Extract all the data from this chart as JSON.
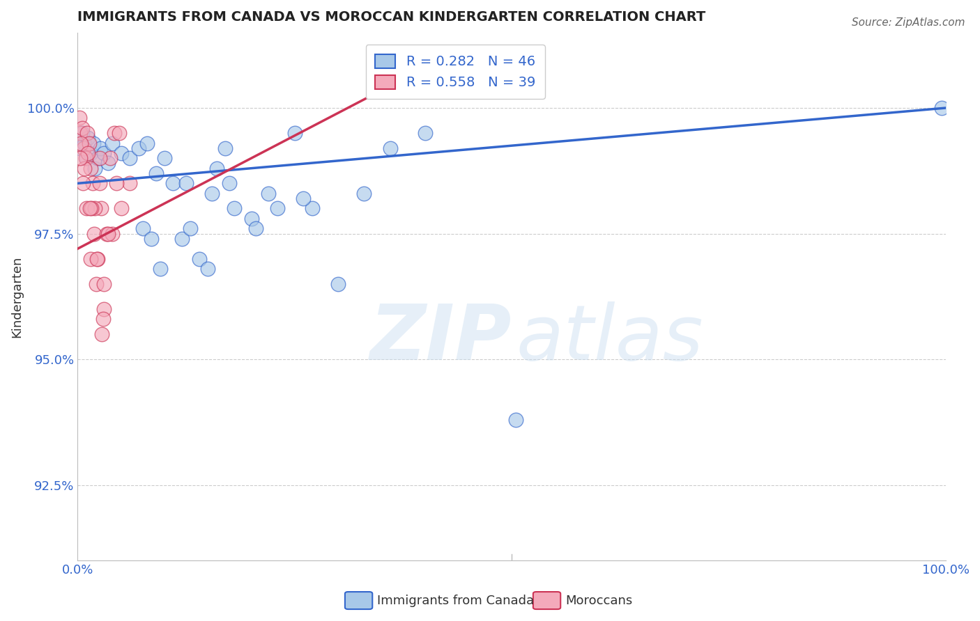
{
  "title": "IMMIGRANTS FROM CANADA VS MOROCCAN KINDERGARTEN CORRELATION CHART",
  "source": "Source: ZipAtlas.com",
  "xlabel": "",
  "ylabel": "Kindergarten",
  "xlim": [
    0.0,
    100.0
  ],
  "ylim": [
    91.0,
    101.5
  ],
  "yticks": [
    92.5,
    95.0,
    97.5,
    100.0
  ],
  "ytick_labels": [
    "92.5%",
    "95.0%",
    "97.5%",
    "100.0%"
  ],
  "blue_color": "#a8c8e8",
  "pink_color": "#f4aabb",
  "blue_line_color": "#3366cc",
  "pink_line_color": "#cc3355",
  "R_blue": 0.282,
  "N_blue": 46,
  "R_pink": 0.558,
  "N_pink": 39,
  "blue_x": [
    0.3,
    0.5,
    0.8,
    1.0,
    1.2,
    1.5,
    1.8,
    2.0,
    2.3,
    2.6,
    3.0,
    3.5,
    4.0,
    5.0,
    6.0,
    7.0,
    8.0,
    9.0,
    10.0,
    11.0,
    12.0,
    13.0,
    14.0,
    15.0,
    16.0,
    17.0,
    18.0,
    20.0,
    22.0,
    25.0,
    27.0,
    30.0,
    33.0,
    36.0,
    40.0,
    7.5,
    8.5,
    9.5,
    12.5,
    15.5,
    17.5,
    20.5,
    23.0,
    26.0,
    50.5,
    99.5
  ],
  "blue_y": [
    99.2,
    99.5,
    99.3,
    99.0,
    99.4,
    99.1,
    99.3,
    98.8,
    99.0,
    99.2,
    99.1,
    98.9,
    99.3,
    99.1,
    99.0,
    99.2,
    99.3,
    98.7,
    99.0,
    98.5,
    97.4,
    97.6,
    97.0,
    96.8,
    98.8,
    99.2,
    98.0,
    97.8,
    98.3,
    99.5,
    98.0,
    96.5,
    98.3,
    99.2,
    99.5,
    97.6,
    97.4,
    96.8,
    98.5,
    98.3,
    98.5,
    97.6,
    98.0,
    98.2,
    93.8,
    100.0
  ],
  "pink_x": [
    0.2,
    0.3,
    0.5,
    0.7,
    0.9,
    1.1,
    1.3,
    1.5,
    1.7,
    1.9,
    2.1,
    2.3,
    2.5,
    2.7,
    3.0,
    3.3,
    3.7,
    4.2,
    4.8,
    1.0,
    1.5,
    2.0,
    2.5,
    3.0,
    4.0,
    5.0,
    6.0,
    0.4,
    0.6,
    0.8,
    1.2,
    1.6,
    2.2,
    2.8,
    3.5,
    4.5,
    0.3,
    1.4,
    2.9
  ],
  "pink_y": [
    99.8,
    99.5,
    99.6,
    99.2,
    99.0,
    99.5,
    99.3,
    98.8,
    98.5,
    97.5,
    96.5,
    97.0,
    98.5,
    98.0,
    96.5,
    97.5,
    99.0,
    99.5,
    99.5,
    98.0,
    97.0,
    98.0,
    99.0,
    96.0,
    97.5,
    98.0,
    98.5,
    99.3,
    98.5,
    98.8,
    99.1,
    98.0,
    97.0,
    95.5,
    97.5,
    98.5,
    99.0,
    98.0,
    95.8
  ],
  "watermark_zip": "ZIP",
  "watermark_atlas": "atlas",
  "background_color": "#ffffff",
  "grid_color": "#cccccc"
}
